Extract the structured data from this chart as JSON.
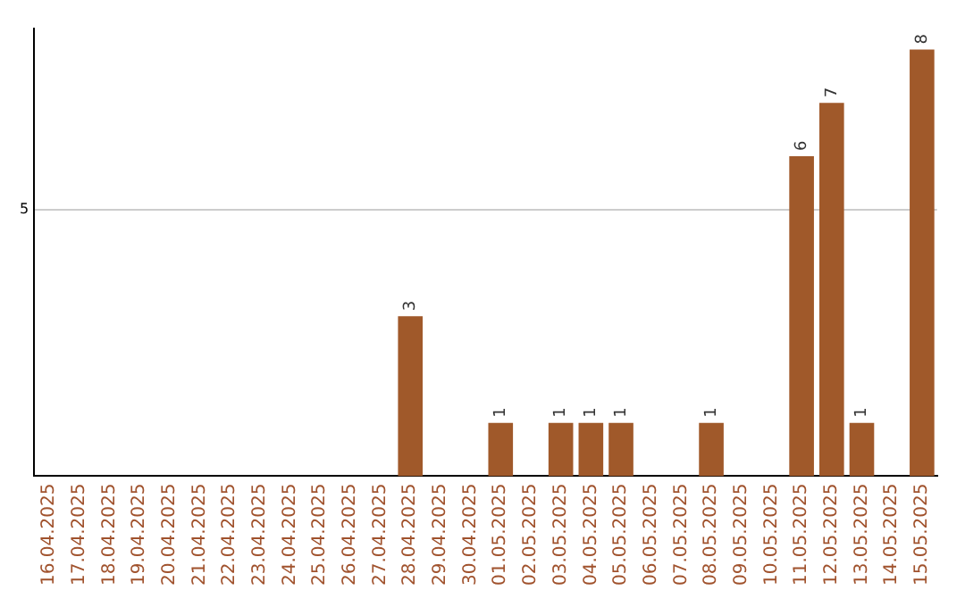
{
  "chart_data": {
    "type": "bar",
    "categories": [
      "16.04.2025",
      "17.04.2025",
      "18.04.2025",
      "19.04.2025",
      "20.04.2025",
      "21.04.2025",
      "22.04.2025",
      "23.04.2025",
      "24.04.2025",
      "25.04.2025",
      "26.04.2025",
      "27.04.2025",
      "28.04.2025",
      "29.04.2025",
      "30.04.2025",
      "01.05.2025",
      "02.05.2025",
      "03.05.2025",
      "04.05.2025",
      "05.05.2025",
      "06.05.2025",
      "07.05.2025",
      "08.05.2025",
      "09.05.2025",
      "10.05.2025",
      "11.05.2025",
      "12.05.2025",
      "13.05.2025",
      "14.05.2025",
      "15.05.2025"
    ],
    "values": [
      null,
      null,
      null,
      null,
      null,
      null,
      null,
      null,
      null,
      null,
      null,
      null,
      3,
      null,
      null,
      1,
      null,
      1,
      1,
      1,
      null,
      null,
      1,
      null,
      null,
      6,
      7,
      1,
      null,
      8
    ],
    "color": "#a0592a",
    "ylim": [
      0,
      8.4
    ],
    "yticks": [
      5
    ],
    "grid": "y",
    "data_labels": true,
    "legend": false
  }
}
